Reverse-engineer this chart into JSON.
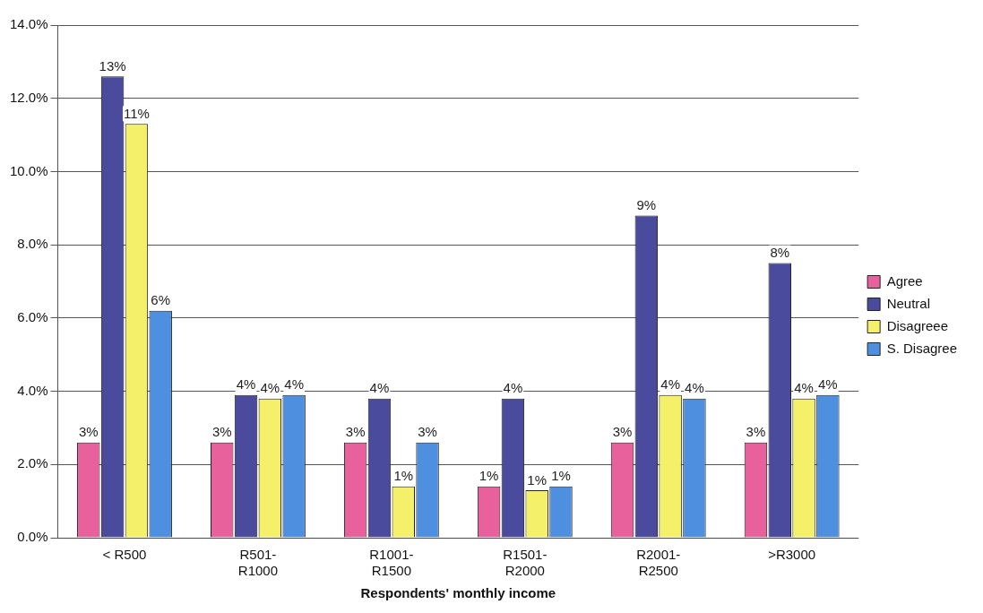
{
  "chart_data": {
    "type": "bar",
    "xlabel": "Respondents' monthly income",
    "categories": [
      "< R500",
      "R501-R1000",
      "R1001-R1500",
      "R1501-R2000",
      "R2001-R2500",
      ">R3000"
    ],
    "series": [
      {
        "name": "Agree",
        "color": "#e8609c",
        "values": [
          2.6,
          2.6,
          2.6,
          1.4,
          2.6,
          2.6
        ],
        "value_labels": [
          "3%",
          "3%",
          "3%",
          "1%",
          "3%",
          "3%"
        ]
      },
      {
        "name": "Neutral",
        "color": "#4b4b9e",
        "values": [
          12.6,
          3.9,
          3.8,
          3.8,
          8.8,
          7.5
        ],
        "value_labels": [
          "13%",
          "4%",
          "4%",
          "4%",
          "9%",
          "8%"
        ]
      },
      {
        "name": "Disagreee",
        "color": "#f5f06a",
        "values": [
          11.3,
          3.8,
          1.4,
          1.3,
          3.9,
          3.8
        ],
        "value_labels": [
          "11%",
          "4%",
          "1%",
          "1%",
          "4%",
          "4%"
        ]
      },
      {
        "name": "S. Disagree",
        "color": "#4f8fe0",
        "values": [
          6.2,
          3.9,
          2.6,
          1.4,
          3.8,
          3.9
        ],
        "value_labels": [
          "6%",
          "4%",
          "3%",
          "1%",
          "4%",
          "4%"
        ]
      }
    ],
    "ylim": [
      0,
      14
    ],
    "yticks": [
      {
        "value": 0,
        "label": "0.0%"
      },
      {
        "value": 2,
        "label": "2.0%"
      },
      {
        "value": 4,
        "label": "4.0%"
      },
      {
        "value": 6,
        "label": "6.0%"
      },
      {
        "value": 8,
        "label": "8.0%"
      },
      {
        "value": 10,
        "label": "10.0%"
      },
      {
        "value": 12,
        "label": "12.0%"
      },
      {
        "value": 14,
        "label": "14.0%"
      }
    ],
    "grid": "y",
    "legend": "right"
  }
}
